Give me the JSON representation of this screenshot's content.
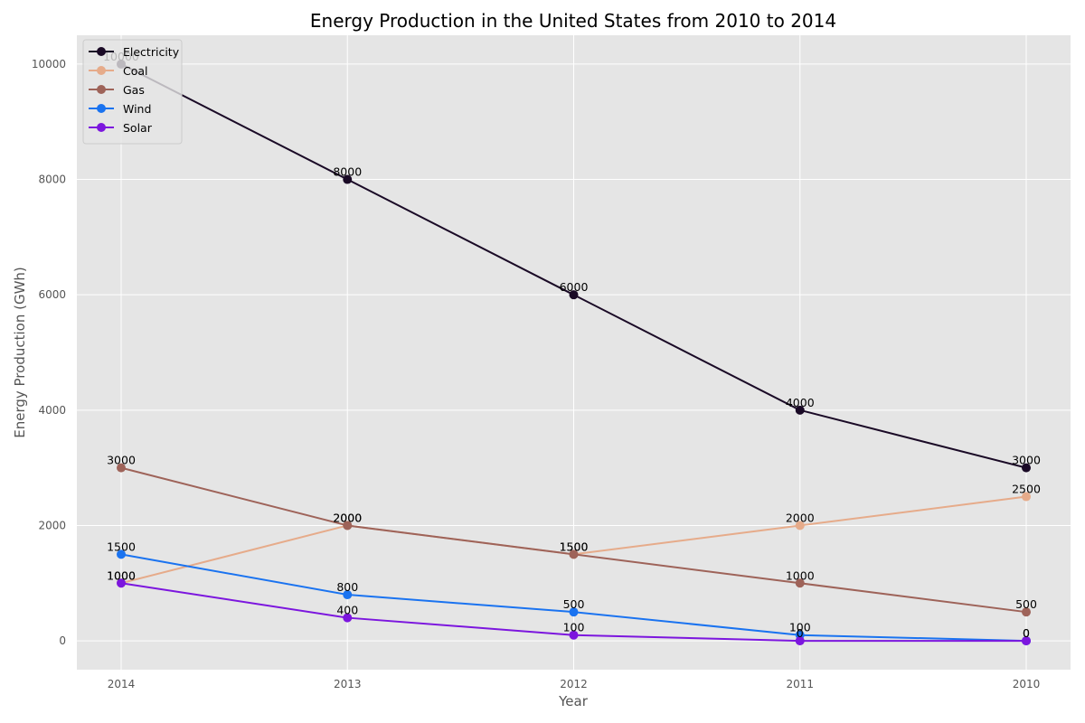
{
  "chart_data": {
    "type": "line",
    "title": "Energy Production in the United States from 2010 to 2014",
    "xlabel": "Year",
    "ylabel": "Energy Production (GWh)",
    "x": [
      "2014",
      "2013",
      "2012",
      "2011",
      "2010"
    ],
    "ylim": [
      -500,
      10500
    ],
    "yticks": [
      "0",
      "2000",
      "4000",
      "6000",
      "8000",
      "10000"
    ],
    "grid": true,
    "legend_position": "top-left",
    "series": [
      {
        "name": "Electricity",
        "color": "#1a0a26",
        "values": [
          10000,
          8000,
          6000,
          4000,
          3000
        ]
      },
      {
        "name": "Coal",
        "color": "#e6ab8a",
        "values": [
          1000,
          2000,
          1500,
          2000,
          2500
        ]
      },
      {
        "name": "Gas",
        "color": "#9e6359",
        "values": [
          3000,
          2000,
          1500,
          1000,
          500
        ]
      },
      {
        "name": "Wind",
        "color": "#1a73f0",
        "values": [
          1500,
          800,
          500,
          100,
          0
        ]
      },
      {
        "name": "Solar",
        "color": "#7c16de",
        "values": [
          1000,
          400,
          100,
          0,
          0
        ]
      }
    ]
  }
}
